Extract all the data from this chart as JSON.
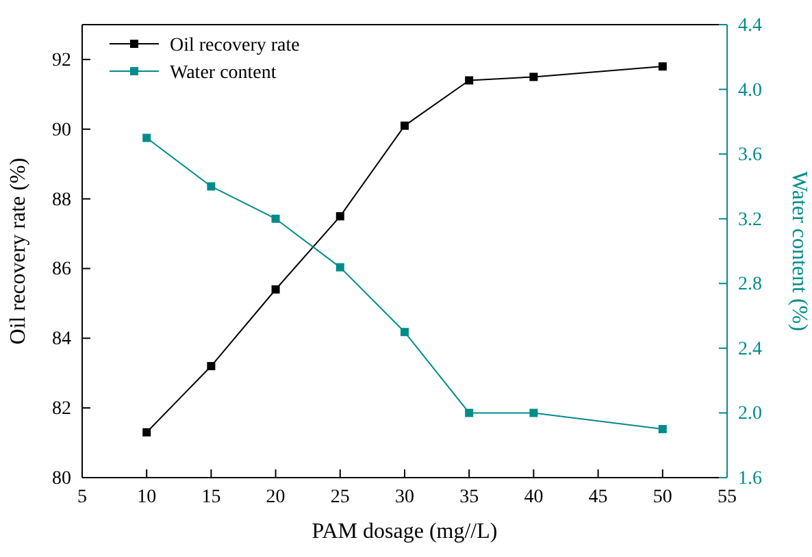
{
  "chart_data": {
    "type": "line",
    "xlabel": "PAM dosage (mg//L)",
    "ylabel": "Oil recovery rate (%)",
    "y2label": "Water content (%)",
    "x": [
      10,
      15,
      20,
      25,
      30,
      35,
      40,
      50
    ],
    "xlim": [
      5,
      55
    ],
    "xticks": [
      5,
      10,
      15,
      20,
      25,
      30,
      35,
      40,
      45,
      50,
      55
    ],
    "ylim": [
      80,
      93
    ],
    "yticks": [
      80,
      82,
      84,
      86,
      88,
      90,
      92
    ],
    "y2lim": [
      1.6,
      4.4
    ],
    "y2ticks": [
      {
        "value": 1.6,
        "label": "1.6"
      },
      {
        "value": 2.0,
        "label": "2.0"
      },
      {
        "value": 2.4,
        "label": "2.4"
      },
      {
        "value": 2.8,
        "label": "2.8"
      },
      {
        "value": 3.2,
        "label": "3.2"
      },
      {
        "value": 3.6,
        "label": "3.6"
      },
      {
        "value": 4.0,
        "label": "4.0"
      },
      {
        "value": 4.4,
        "label": "4.4"
      }
    ],
    "marker": "square",
    "legend": "top left",
    "grid": false,
    "series": [
      {
        "name": "Oil recovery rate",
        "color": "#000000",
        "values": [
          81.3,
          83.2,
          85.4,
          87.5,
          90.1,
          91.4,
          91.5,
          91.8
        ]
      },
      {
        "name": "Water content",
        "color": "#008b8b",
        "axis": "y2",
        "values": [
          3.7,
          3.4,
          3.2,
          2.9,
          2.5,
          2.0,
          2.0,
          1.9
        ]
      }
    ]
  }
}
